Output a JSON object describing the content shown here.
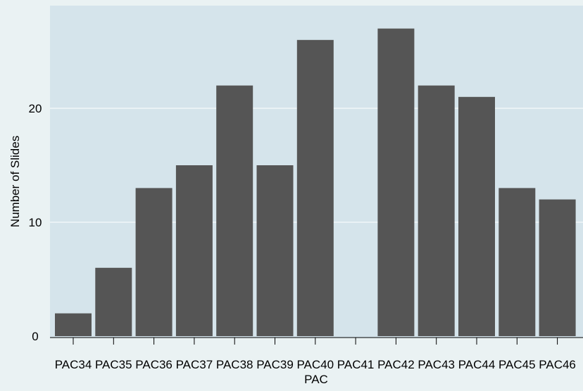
{
  "chart_data": {
    "type": "bar",
    "title": "",
    "xlabel": "PAC",
    "ylabel": "Number of Slides",
    "categories": [
      "PAC34",
      "PAC35",
      "PAC36",
      "PAC37",
      "PAC38",
      "PAC39",
      "PAC40",
      "PAC41",
      "PAC42",
      "PAC43",
      "PAC44",
      "PAC45",
      "PAC46"
    ],
    "values": [
      2,
      6,
      13,
      15,
      22,
      15,
      26,
      0,
      27,
      22,
      21,
      13,
      12
    ],
    "ylim": [
      0,
      28
    ],
    "yticks": [
      0,
      10,
      20
    ],
    "grid": true,
    "legend": "none"
  },
  "colors": {
    "outer_background": "#eaf2f3",
    "plot_background": "#d5e4eb",
    "bar": "#555555",
    "grid": "#ffffff",
    "axis": "#000000"
  }
}
